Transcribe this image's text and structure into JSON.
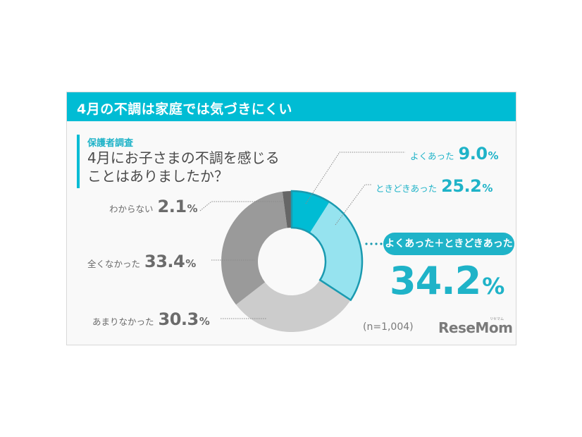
{
  "header": {
    "title": "4月の不調は家庭では気づきにくい"
  },
  "question": {
    "label": "保護者調査",
    "line1": "4月にお子さまの不調を感じる",
    "line2": "ことはありましたか？"
  },
  "labels": {
    "often": {
      "text": "よくあった",
      "value": "9.0",
      "unit": "%"
    },
    "sometimes": {
      "text": "ときどきあった",
      "value": "25.2",
      "unit": "%"
    },
    "dont_know": {
      "text": "わからない",
      "value": "2.1",
      "unit": "%"
    },
    "never": {
      "text": "全くなかった",
      "value": "33.4",
      "unit": "%"
    },
    "rarely": {
      "text": "あまりなかった",
      "value": "30.3",
      "unit": "%"
    }
  },
  "combined": {
    "label": "よくあった＋ときどきあった",
    "value": "34.2",
    "unit": "%"
  },
  "sample": "(n=1,004)",
  "logo": {
    "name": "ReseMom",
    "sub": "リセマム"
  },
  "colors": {
    "accent": "#00bcd4",
    "often": "#00bcd4",
    "sometimes": "#96e3ef",
    "rarely": "#cccccc",
    "never": "#9a9a9a",
    "dont_know": "#666666",
    "outline": "#1a9ab0"
  },
  "chart_data": {
    "type": "pie",
    "subtype": "donut",
    "title": "4月にお子さまの不調を感じることはありましたか？",
    "subtitle": "保護者調査",
    "categories": [
      "よくあった",
      "ときどきあった",
      "あまりなかった",
      "全くなかった",
      "わからない"
    ],
    "values": [
      9.0,
      25.2,
      30.3,
      33.4,
      2.1
    ],
    "unit": "%",
    "start_angle": "12 o'clock, clockwise",
    "annotation": {
      "label": "よくあった＋ときどきあった",
      "value": 34.2
    },
    "sample_size": "n=1,004",
    "legend": "none (direct labels)"
  }
}
